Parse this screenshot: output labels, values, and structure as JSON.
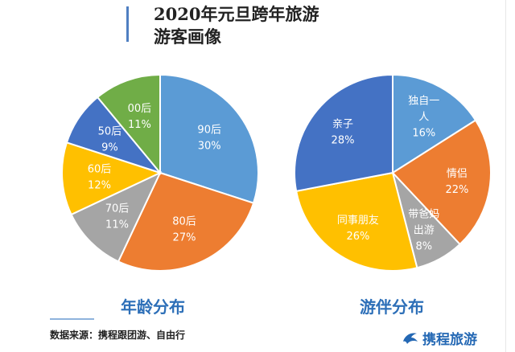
{
  "title": {
    "line1": "2020年元旦跨年旅游",
    "line2": "游客画像"
  },
  "source": "数据来源：携程跟团游、自由行",
  "logo": {
    "text": "携程旅游",
    "icon": "dolphin-logo-icon",
    "color": "#2468b4"
  },
  "chart_data": [
    {
      "type": "pie",
      "title": "年龄分布",
      "slices": [
        {
          "label": "90后",
          "value": 30,
          "pct": "30%",
          "color": "#5b9bd5"
        },
        {
          "label": "80后",
          "value": 27,
          "pct": "27%",
          "color": "#ed7d31"
        },
        {
          "label": "70后",
          "value": 11,
          "pct": "11%",
          "color": "#a5a5a5"
        },
        {
          "label": "60后",
          "value": 12,
          "pct": "12%",
          "color": "#ffc000"
        },
        {
          "label": "50后",
          "value": 9,
          "pct": "9%",
          "color": "#4472c4"
        },
        {
          "label": "00后",
          "value": 11,
          "pct": "11%",
          "color": "#70ad47"
        }
      ]
    },
    {
      "type": "pie",
      "title": "游伴分布",
      "slices": [
        {
          "label": "独自一人",
          "value": 16,
          "pct": "16%",
          "color": "#5b9bd5"
        },
        {
          "label": "情侣",
          "value": 22,
          "pct": "22%",
          "color": "#ed7d31"
        },
        {
          "label": "带爸妈出游",
          "value": 8,
          "pct": "8%",
          "color": "#a5a5a5"
        },
        {
          "label": "同事朋友",
          "value": 26,
          "pct": "26%",
          "color": "#ffc000"
        },
        {
          "label": "亲子",
          "value": 28,
          "pct": "28%",
          "color": "#4472c4"
        }
      ]
    }
  ]
}
